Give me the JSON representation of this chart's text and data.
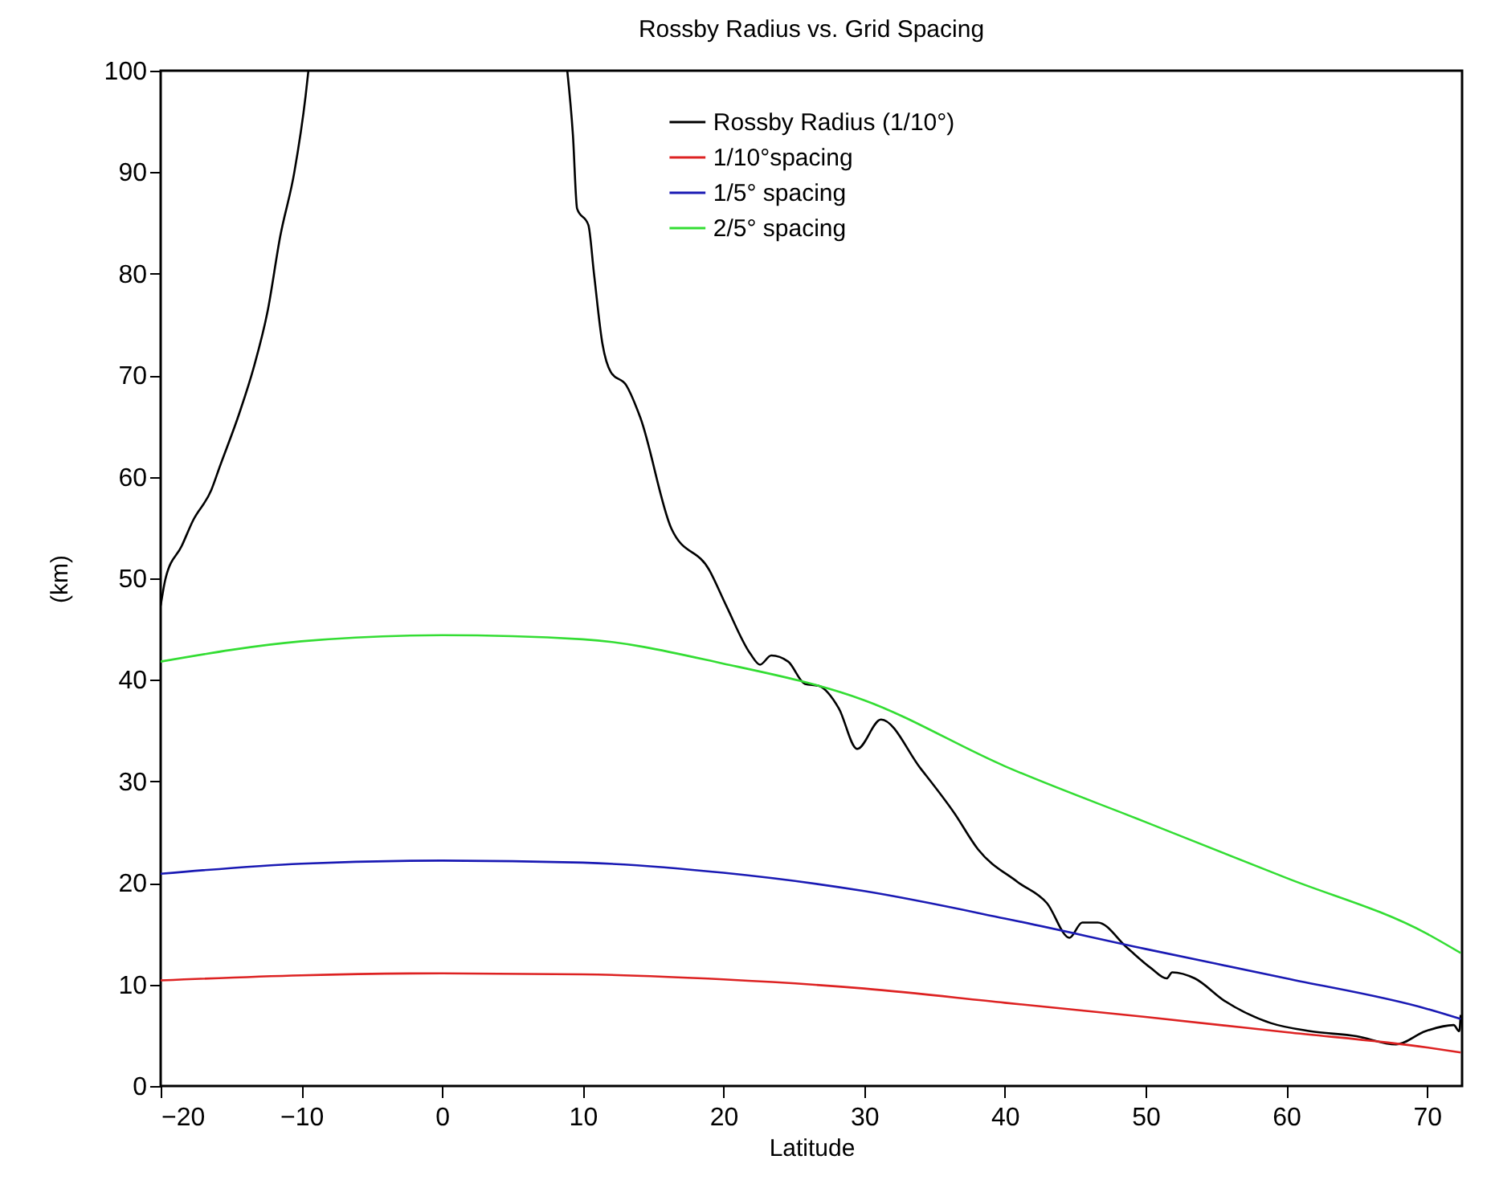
{
  "chart_data": {
    "type": "line",
    "title": "Rossby Radius vs. Grid Spacing",
    "xlabel": "Latitude",
    "ylabel": "(km)",
    "xlim": [
      -20,
      72.5
    ],
    "ylim": [
      0,
      100
    ],
    "xticks": [
      -20,
      -10,
      0,
      10,
      20,
      30,
      40,
      50,
      60,
      70
    ],
    "yticks": [
      0,
      10,
      20,
      30,
      40,
      50,
      60,
      70,
      80,
      90,
      100
    ],
    "grid": false,
    "legend": "top",
    "marker": "none",
    "line_style": "solid",
    "series": [
      {
        "name": "Rossby Radius (1/10°)",
        "color": "#000000",
        "x": [
          -20,
          -19.65,
          -18.5,
          -17.7,
          -16.4,
          -15.8,
          -14.4,
          -13.4,
          -12.4,
          -11.5,
          -10.5,
          -9.7,
          -9.5,
          0,
          8.9,
          9.3,
          9.6,
          10.4,
          10.8,
          11.4,
          12.0,
          13.1,
          14.1,
          16.3,
          19.0,
          20.2,
          21.9,
          22.6,
          23.4,
          24.6,
          25.8,
          26.8,
          28.2,
          29.5,
          31.2,
          34.0,
          36.4,
          38.1,
          40.9,
          43.0,
          44.6,
          45.5,
          46.6,
          48.7,
          50.4,
          51.5,
          51.9,
          53.5,
          55.6,
          58.9,
          61.7,
          65.0,
          67.8,
          69.9,
          71.9,
          72.3,
          72.4
        ],
        "values": [
          47.3,
          50,
          53.2,
          55.7,
          58.7,
          61,
          66.3,
          70.7,
          76.3,
          83.7,
          90,
          97.5,
          100,
          null,
          100,
          93.7,
          86.4,
          84.8,
          80,
          73.1,
          70.3,
          69,
          65.8,
          54.9,
          50.8,
          47.3,
          42.6,
          41.5,
          42.4,
          41.8,
          39.6,
          39.4,
          37.2,
          33.2,
          36.1,
          31.3,
          26.9,
          23.3,
          20.1,
          18,
          14.6,
          16.1,
          16.1,
          13.6,
          11.6,
          10.6,
          11.2,
          10.6,
          8.4,
          6.2,
          5.4,
          4.9,
          4.1,
          5.4,
          6.0,
          5.4,
          7.0
        ]
      },
      {
        "name": "1/10°spacing",
        "color": "#dd2222",
        "x": [
          -20,
          -10,
          0,
          10,
          20,
          30,
          40,
          50,
          60,
          70,
          72.4
        ],
        "values": [
          10.4,
          10.9,
          11.1,
          11.0,
          10.5,
          9.6,
          8.2,
          6.8,
          5.3,
          3.8,
          3.3
        ]
      },
      {
        "name": "1/5°  spacing",
        "color": "#1a1ab4",
        "x": [
          -20,
          -10,
          0,
          10,
          20,
          30,
          40,
          50,
          60,
          70,
          72.4
        ],
        "values": [
          20.9,
          21.9,
          22.2,
          22.0,
          21.0,
          19.2,
          16.5,
          13.5,
          10.6,
          7.6,
          6.6
        ]
      },
      {
        "name": "2/5°  spacing",
        "color": "#33dd33",
        "x": [
          -20,
          -10,
          0,
          10,
          20,
          30,
          40,
          50,
          60,
          70,
          72.4
        ],
        "values": [
          41.8,
          43.8,
          44.4,
          44.0,
          41.6,
          38.0,
          31.5,
          26.0,
          20.5,
          15.0,
          13.1
        ]
      }
    ]
  }
}
